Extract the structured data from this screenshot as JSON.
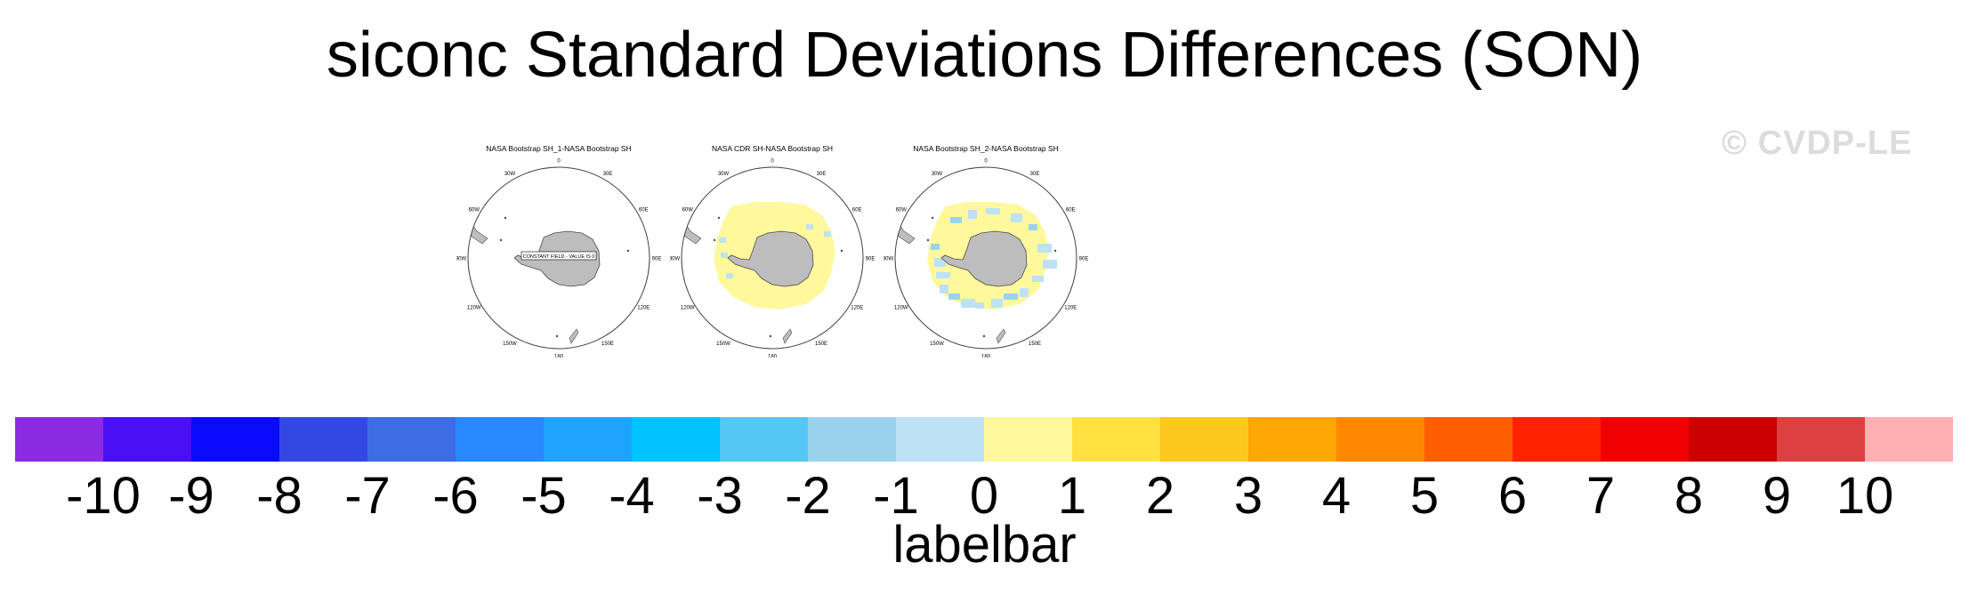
{
  "title": "siconc Standard Deviations Differences (SON)",
  "watermark": "© CVDP-LE",
  "panels": [
    {
      "title": "NASA Bootstrap SH_1-NASA Bootstrap SH",
      "note": "CONSTANT FIELD - VALUE IS 0"
    },
    {
      "title": "NASA CDR SH-NASA Bootstrap SH"
    },
    {
      "title": "NASA Bootstrap SH_2-NASA Bootstrap SH"
    }
  ],
  "lon_labels": [
    "0",
    "30E",
    "60E",
    "90E",
    "120E",
    "150E",
    "180",
    "150W",
    "120W",
    "90W",
    "60W",
    "30W"
  ],
  "chart_data": {
    "type": "heatmap",
    "projection": "south polar stereographic",
    "colorbar": {
      "title": "labelbar",
      "levels": [
        -10,
        -9,
        -8,
        -7,
        -6,
        -5,
        -4,
        -3,
        -2,
        -1,
        0,
        1,
        2,
        3,
        4,
        5,
        6,
        7,
        8,
        9,
        10
      ],
      "tick_labels": [
        "-10",
        "-9",
        "-8",
        "-7",
        "-6",
        "-5",
        "-4",
        "-3",
        "-2",
        "-1",
        "0",
        "1",
        "2",
        "3",
        "4",
        "5",
        "6",
        "7",
        "8",
        "9",
        "10"
      ],
      "colors": [
        "#8a2be2",
        "#4a0ff5",
        "#0a0aff",
        "#3348e3",
        "#3e6ce5",
        "#2988ff",
        "#1ea4ff",
        "#00c3ff",
        "#55c7f5",
        "#9bd3ef",
        "#bde2f5",
        "#fff89c",
        "#ffe241",
        "#ffc81f",
        "#ffa704",
        "#ff8800",
        "#ff5f00",
        "#ff2300",
        "#f00000",
        "#cc0000",
        "#dd4040",
        "#ffb0b0"
      ]
    }
  }
}
